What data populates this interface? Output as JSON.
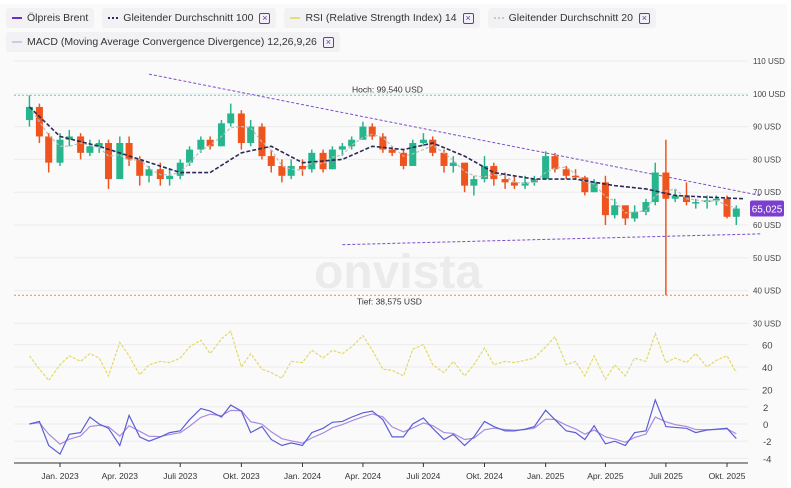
{
  "legend": [
    {
      "label": "Ölpreis Brent",
      "color": "#6a2fc9",
      "style": "solid",
      "removable": false
    },
    {
      "label": "Gleitender Durchschnitt 100",
      "color": "#2c2a5a",
      "style": "dotted",
      "removable": true
    },
    {
      "label": "RSI (Relative Strength Index) 14",
      "color": "#e6dc7a",
      "style": "solid",
      "removable": true
    },
    {
      "label": "Gleitender Durchschnitt 20",
      "color": "#c8c8c8",
      "style": "dotted",
      "removable": true
    },
    {
      "label": "MACD (Moving Average Convergence Divergence) 12,26,9,26",
      "color": "#c9cbe8",
      "style": "solid",
      "removable": true
    }
  ],
  "remove_icon": "close-box-icon",
  "watermark": "onvista",
  "colors": {
    "up": "#26b58c",
    "down": "#f0541e",
    "trend": "#7b4fc9",
    "ma100": "#2c2a5a",
    "ma20": "#bdbdbd",
    "rsi": "#e3d86a",
    "macd": "#5b5fd6",
    "signal": "#a98be0",
    "high_line": "#5fd0b8",
    "low_line": "#f0854f",
    "badge": "#7b3fd0"
  },
  "chart_data": {
    "type": "candlestick",
    "price_axis": {
      "ticks": [
        "110 USD",
        "100 USD",
        "90 USD",
        "80 USD",
        "70 USD",
        "60 USD",
        "50 USD",
        "40 USD",
        "30 USD"
      ],
      "tick_values": [
        110,
        100,
        90,
        80,
        70,
        60,
        50,
        40,
        30
      ],
      "range": [
        30,
        113
      ]
    },
    "rsi_axis": {
      "ticks": [
        "60",
        "40",
        "20"
      ],
      "tick_values": [
        60,
        40,
        20
      ]
    },
    "macd_axis": {
      "ticks": [
        "2",
        "0",
        "-2",
        "-4"
      ],
      "tick_values": [
        2,
        0,
        -2,
        -4
      ]
    },
    "x_ticks": [
      {
        "label": "Jan. 2023",
        "date": "2023-01-01"
      },
      {
        "label": "Apr. 2023",
        "date": "2023-04-01"
      },
      {
        "label": "Juli 2023",
        "date": "2023-07-01"
      },
      {
        "label": "Okt. 2023",
        "date": "2023-10-01"
      },
      {
        "label": "Jan. 2024",
        "date": "2024-01-01"
      },
      {
        "label": "Apr. 2024",
        "date": "2024-04-01"
      },
      {
        "label": "Juli 2024",
        "date": "2024-07-01"
      },
      {
        "label": "Okt. 2024",
        "date": "2024-10-01"
      },
      {
        "label": "Jan. 2025",
        "date": "2025-01-01"
      },
      {
        "label": "Apr. 2025",
        "date": "2025-04-01"
      },
      {
        "label": "Juli 2025",
        "date": "2025-07-01"
      },
      {
        "label": "Okt. 2025",
        "date": "2025-10-01"
      }
    ],
    "high": {
      "label": "Hoch: 99,540 USD",
      "value": 99.54
    },
    "low": {
      "label": "Tief: 38,575 USD",
      "value": 38.575
    },
    "last_price": {
      "label": "65,025",
      "value": 65.025
    },
    "trendlines": [
      {
        "from": [
          "2023-05-15",
          106
        ],
        "to": [
          "2025-11-20",
          69
        ]
      },
      {
        "from": [
          "2024-03-01",
          54
        ],
        "to": [
          "2025-11-20",
          57.3
        ]
      }
    ],
    "candles": [
      [
        "2022-11-16",
        92,
        99.54,
        90,
        96
      ],
      [
        "2022-12-01",
        96,
        97,
        85,
        87
      ],
      [
        "2022-12-15",
        87,
        88,
        76,
        79
      ],
      [
        "2023-01-01",
        79,
        88,
        78,
        86
      ],
      [
        "2023-01-15",
        86,
        89,
        84,
        87
      ],
      [
        "2023-02-01",
        87,
        88,
        80,
        82
      ],
      [
        "2023-02-15",
        82,
        86,
        81,
        84
      ],
      [
        "2023-03-01",
        84,
        86,
        82,
        85
      ],
      [
        "2023-03-15",
        85,
        86,
        71,
        74
      ],
      [
        "2023-04-01",
        74,
        87,
        74,
        85
      ],
      [
        "2023-04-15",
        85,
        87,
        78,
        80
      ],
      [
        "2023-05-01",
        80,
        81,
        72,
        75
      ],
      [
        "2023-05-15",
        75,
        78,
        73,
        77
      ],
      [
        "2023-06-01",
        77,
        79,
        72,
        74
      ],
      [
        "2023-06-15",
        74,
        77,
        72,
        75
      ],
      [
        "2023-07-01",
        75,
        80,
        74,
        79
      ],
      [
        "2023-07-15",
        79,
        84,
        78,
        83
      ],
      [
        "2023-08-01",
        83,
        87,
        82,
        86
      ],
      [
        "2023-08-15",
        86,
        87,
        83,
        84
      ],
      [
        "2023-09-01",
        84,
        92,
        84,
        91
      ],
      [
        "2023-09-15",
        91,
        97,
        90,
        94
      ],
      [
        "2023-10-01",
        94,
        95,
        83,
        85
      ],
      [
        "2023-10-15",
        85,
        92,
        84,
        90
      ],
      [
        "2023-11-01",
        90,
        91,
        80,
        81
      ],
      [
        "2023-11-15",
        81,
        83,
        76,
        78
      ],
      [
        "2023-12-01",
        78,
        80,
        73,
        75
      ],
      [
        "2023-12-15",
        75,
        80,
        74,
        78
      ],
      [
        "2024-01-01",
        78,
        80,
        75,
        77
      ],
      [
        "2024-01-15",
        77,
        83,
        76,
        82
      ],
      [
        "2024-02-01",
        82,
        83,
        76,
        77
      ],
      [
        "2024-02-15",
        77,
        84,
        77,
        83
      ],
      [
        "2024-03-01",
        83,
        85,
        81,
        84
      ],
      [
        "2024-03-15",
        84,
        87,
        83,
        86
      ],
      [
        "2024-04-01",
        86,
        91.5,
        86,
        90
      ],
      [
        "2024-04-15",
        90,
        91,
        86,
        87
      ],
      [
        "2024-05-01",
        87,
        88,
        82,
        83
      ],
      [
        "2024-05-15",
        83,
        84,
        81,
        82
      ],
      [
        "2024-06-01",
        82,
        83,
        77,
        78
      ],
      [
        "2024-06-15",
        78,
        86,
        78,
        85
      ],
      [
        "2024-07-01",
        85,
        88,
        84,
        86
      ],
      [
        "2024-07-15",
        86,
        87,
        81,
        82
      ],
      [
        "2024-08-01",
        82,
        83,
        76,
        78
      ],
      [
        "2024-08-15",
        78,
        81,
        76,
        79
      ],
      [
        "2024-09-01",
        79,
        79,
        70,
        72
      ],
      [
        "2024-09-15",
        72,
        75,
        69,
        74
      ],
      [
        "2024-10-01",
        74,
        81,
        73,
        78
      ],
      [
        "2024-10-15",
        78,
        79,
        72,
        74
      ],
      [
        "2024-11-01",
        74,
        76,
        71,
        73
      ],
      [
        "2024-11-15",
        73,
        75,
        71,
        72
      ],
      [
        "2024-12-01",
        72,
        75,
        71,
        73
      ],
      [
        "2024-12-15",
        73,
        75,
        72,
        74
      ],
      [
        "2025-01-01",
        74,
        82.5,
        74,
        81
      ],
      [
        "2025-01-15",
        81,
        82,
        76,
        77
      ],
      [
        "2025-02-01",
        77,
        78,
        74,
        75
      ],
      [
        "2025-02-15",
        75,
        77,
        74,
        74.5
      ],
      [
        "2025-03-01",
        74.5,
        75,
        69,
        70
      ],
      [
        "2025-03-15",
        70,
        74,
        70,
        73
      ],
      [
        "2025-04-01",
        73,
        75,
        60,
        63
      ],
      [
        "2025-04-15",
        63,
        68,
        62,
        66
      ],
      [
        "2025-05-01",
        66,
        66,
        60,
        62
      ],
      [
        "2025-05-15",
        62,
        66,
        61,
        64
      ],
      [
        "2025-06-01",
        64,
        68,
        63,
        67
      ],
      [
        "2025-06-15",
        67,
        79,
        66,
        76
      ],
      [
        "2025-07-01",
        76,
        86,
        38.575,
        68
      ],
      [
        "2025-07-15",
        68,
        71,
        67,
        69
      ],
      [
        "2025-08-01",
        69,
        73,
        66,
        67
      ],
      [
        "2025-08-15",
        67,
        68,
        65,
        67
      ],
      [
        "2025-09-01",
        67,
        69,
        65,
        67.5
      ],
      [
        "2025-09-15",
        67.5,
        69,
        66,
        68
      ],
      [
        "2025-10-01",
        68,
        69,
        62,
        62.5
      ],
      [
        "2025-10-15",
        62.5,
        66,
        60,
        65.025
      ]
    ],
    "ma100": [
      [
        "2022-11-16",
        96
      ],
      [
        "2023-01-01",
        87
      ],
      [
        "2023-03-01",
        84
      ],
      [
        "2023-05-01",
        80
      ],
      [
        "2023-07-01",
        76
      ],
      [
        "2023-08-15",
        76
      ],
      [
        "2023-10-01",
        82
      ],
      [
        "2023-11-15",
        84
      ],
      [
        "2024-01-01",
        79
      ],
      [
        "2024-03-01",
        80
      ],
      [
        "2024-04-15",
        84
      ],
      [
        "2024-06-01",
        83
      ],
      [
        "2024-07-15",
        85
      ],
      [
        "2024-09-01",
        81
      ],
      [
        "2024-10-15",
        76
      ],
      [
        "2024-12-15",
        74
      ],
      [
        "2025-02-15",
        74
      ],
      [
        "2025-04-15",
        72
      ],
      [
        "2025-06-01",
        71
      ],
      [
        "2025-07-15",
        69
      ],
      [
        "2025-09-01",
        68.5
      ],
      [
        "2025-10-28",
        68
      ]
    ],
    "rsi": [
      50,
      38,
      28,
      42,
      50,
      45,
      52,
      48,
      32,
      62,
      50,
      33,
      42,
      45,
      44,
      48,
      58,
      64,
      52,
      65,
      72,
      40,
      52,
      38,
      35,
      30,
      45,
      44,
      55,
      48,
      55,
      52,
      58,
      68,
      55,
      38,
      37,
      32,
      56,
      60,
      42,
      35,
      45,
      32,
      42,
      57,
      42,
      45,
      44,
      46,
      48,
      58,
      67,
      42,
      45,
      32,
      50,
      29,
      42,
      32,
      48,
      45,
      70,
      44,
      48,
      44,
      52,
      40,
      46,
      50,
      35
    ],
    "macd": [
      0,
      0.3,
      -2.5,
      -3.5,
      -1.2,
      -1,
      0.8,
      0,
      -0.5,
      -2.5,
      1,
      -1.5,
      -2,
      -1.5,
      -1,
      -0.8,
      0.5,
      1.8,
      1.5,
      0.8,
      2.2,
      1.5,
      -1,
      -0.3,
      -1.8,
      -2.5,
      -2.2,
      -2.5,
      -1,
      -0.5,
      0.2,
      0.3,
      0.8,
      1.3,
      1.5,
      0.5,
      -1.5,
      -1.5,
      0,
      0.7,
      -0.5,
      -1.8,
      -1.2,
      -2.5,
      -1.5,
      0.3,
      -0.3,
      -0.8,
      -0.8,
      -0.6,
      -0.3,
      1.6,
      0.5,
      -0.8,
      -1,
      -1.8,
      -0.2,
      -2.3,
      -2,
      -2.5,
      -1,
      -0.8,
      2.8,
      -0.3,
      -0.4,
      -0.5,
      -1,
      -0.7,
      -0.6,
      -0.5,
      -1.7
    ]
  }
}
